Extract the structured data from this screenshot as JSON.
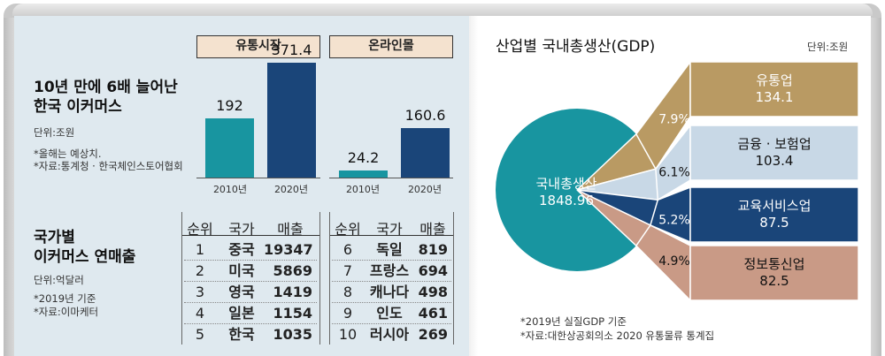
{
  "ecommerce": {
    "headline": [
      "10년 만에 6배 늘어난",
      "한국 이커머스"
    ],
    "unit": "단위:조원",
    "notes": [
      "*올해는 예상치.",
      "*자료:통계청 · 한국체인스토어협회"
    ],
    "market_label": "유통시장",
    "online_label": "온라인몰"
  },
  "ranking": {
    "headline": [
      "국가별",
      "이커머스 연매출"
    ],
    "unit": "단위:억달러",
    "notes": [
      "*2019년 기준",
      "*자료:이마케터"
    ],
    "headers": [
      "순위",
      "국가",
      "매출"
    ],
    "rows_left": [
      {
        "rank": "1",
        "country": "중국",
        "sales": "19347"
      },
      {
        "rank": "2",
        "country": "미국",
        "sales": "5869"
      },
      {
        "rank": "3",
        "country": "영국",
        "sales": "1419"
      },
      {
        "rank": "4",
        "country": "일본",
        "sales": "1154"
      },
      {
        "rank": "5",
        "country": "한국",
        "sales": "1035"
      }
    ],
    "rows_right": [
      {
        "rank": "6",
        "country": "독일",
        "sales": "819"
      },
      {
        "rank": "7",
        "country": "프랑스",
        "sales": "694"
      },
      {
        "rank": "8",
        "country": "캐나다",
        "sales": "498"
      },
      {
        "rank": "9",
        "country": "인도",
        "sales": "461"
      },
      {
        "rank": "10",
        "country": "러시아",
        "sales": "269"
      }
    ]
  },
  "gdp": {
    "title": "산업별 국내총생산(GDP)",
    "unit": "단위:조원",
    "total_label": "국내총생산",
    "total_value": "1848.96",
    "notes": [
      "*2019년 실질GDP 기준",
      "*자료:대한상공회의소 2020 유통물류 통계집"
    ]
  },
  "colors": {
    "teal": "#1895a0",
    "navy": "#1a4579",
    "tan": "#b99a63",
    "light_blue": "#c8d8e6",
    "salmon": "#c99a86",
    "label_bg": "#f4e2cf"
  },
  "chart_data": [
    {
      "type": "bar",
      "title": "유통시장",
      "categories": [
        "2010년",
        "2020년"
      ],
      "values": [
        192,
        371.4
      ],
      "value_labels": [
        "192",
        "371.4"
      ],
      "ylabel": "조원",
      "ylim": [
        0,
        400
      ]
    },
    {
      "type": "bar",
      "title": "온라인몰",
      "categories": [
        "2010년",
        "2020년"
      ],
      "values": [
        24.2,
        160.6
      ],
      "value_labels": [
        "24.2",
        "160.6"
      ],
      "ylabel": "조원",
      "ylim": [
        0,
        400
      ]
    },
    {
      "type": "pie",
      "title": "산업별 국내총생산(GDP)",
      "total": 1848.96,
      "slices": [
        {
          "name": "유통업",
          "value": 134.1,
          "value_label": "134.1",
          "percent": 7.9,
          "percent_label": "7.9%"
        },
        {
          "name": "금융 · 보험업",
          "value": 103.4,
          "value_label": "103.4",
          "percent": 6.1,
          "percent_label": "6.1%"
        },
        {
          "name": "교육서비스업",
          "value": 87.5,
          "value_label": "87.5",
          "percent": 5.2,
          "percent_label": "5.2%"
        },
        {
          "name": "정보통신업",
          "value": 82.5,
          "value_label": "82.5",
          "percent": 4.9,
          "percent_label": "4.9%"
        }
      ]
    }
  ]
}
